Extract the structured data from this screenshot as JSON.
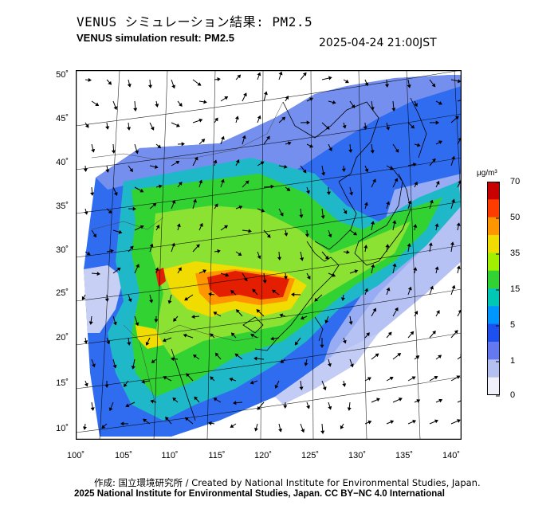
{
  "header": {
    "title_jp": "VENUS シミュレーション結果: PM2.5",
    "title_en": "VENUS simulation result: PM2.5",
    "timestamp": "2025-04-24 21:00JST"
  },
  "map": {
    "lat_labels": [
      "50˚",
      "45˚",
      "40˚",
      "35˚",
      "30˚",
      "25˚",
      "20˚",
      "15˚",
      "10˚"
    ],
    "lon_labels": [
      "100˚",
      "105˚",
      "110˚",
      "115˚",
      "120˚",
      "125˚",
      "130˚",
      "135˚",
      "140˚"
    ],
    "variable": "PM2.5",
    "overlay": "wind-vector-arrows"
  },
  "colorbar": {
    "unit": "μg/m³",
    "ticks": [
      "70",
      "50",
      "35",
      "15",
      "5",
      "1",
      "0"
    ],
    "colors": [
      "#c80000",
      "#ff3c00",
      "#ff9600",
      "#f0dc00",
      "#a0f000",
      "#32d232",
      "#00c8b4",
      "#0096ff",
      "#1e50f0",
      "#6478f0",
      "#b4c0f0",
      "#f0f0fa"
    ]
  },
  "footer": {
    "credit_line": "作成: 国立環境研究所 / Created by National Institute for Environmental Studies, Japan.",
    "license_line": "2025 National Institute for Environmental Studies, Japan. CC BY−NC 4.0 International"
  }
}
